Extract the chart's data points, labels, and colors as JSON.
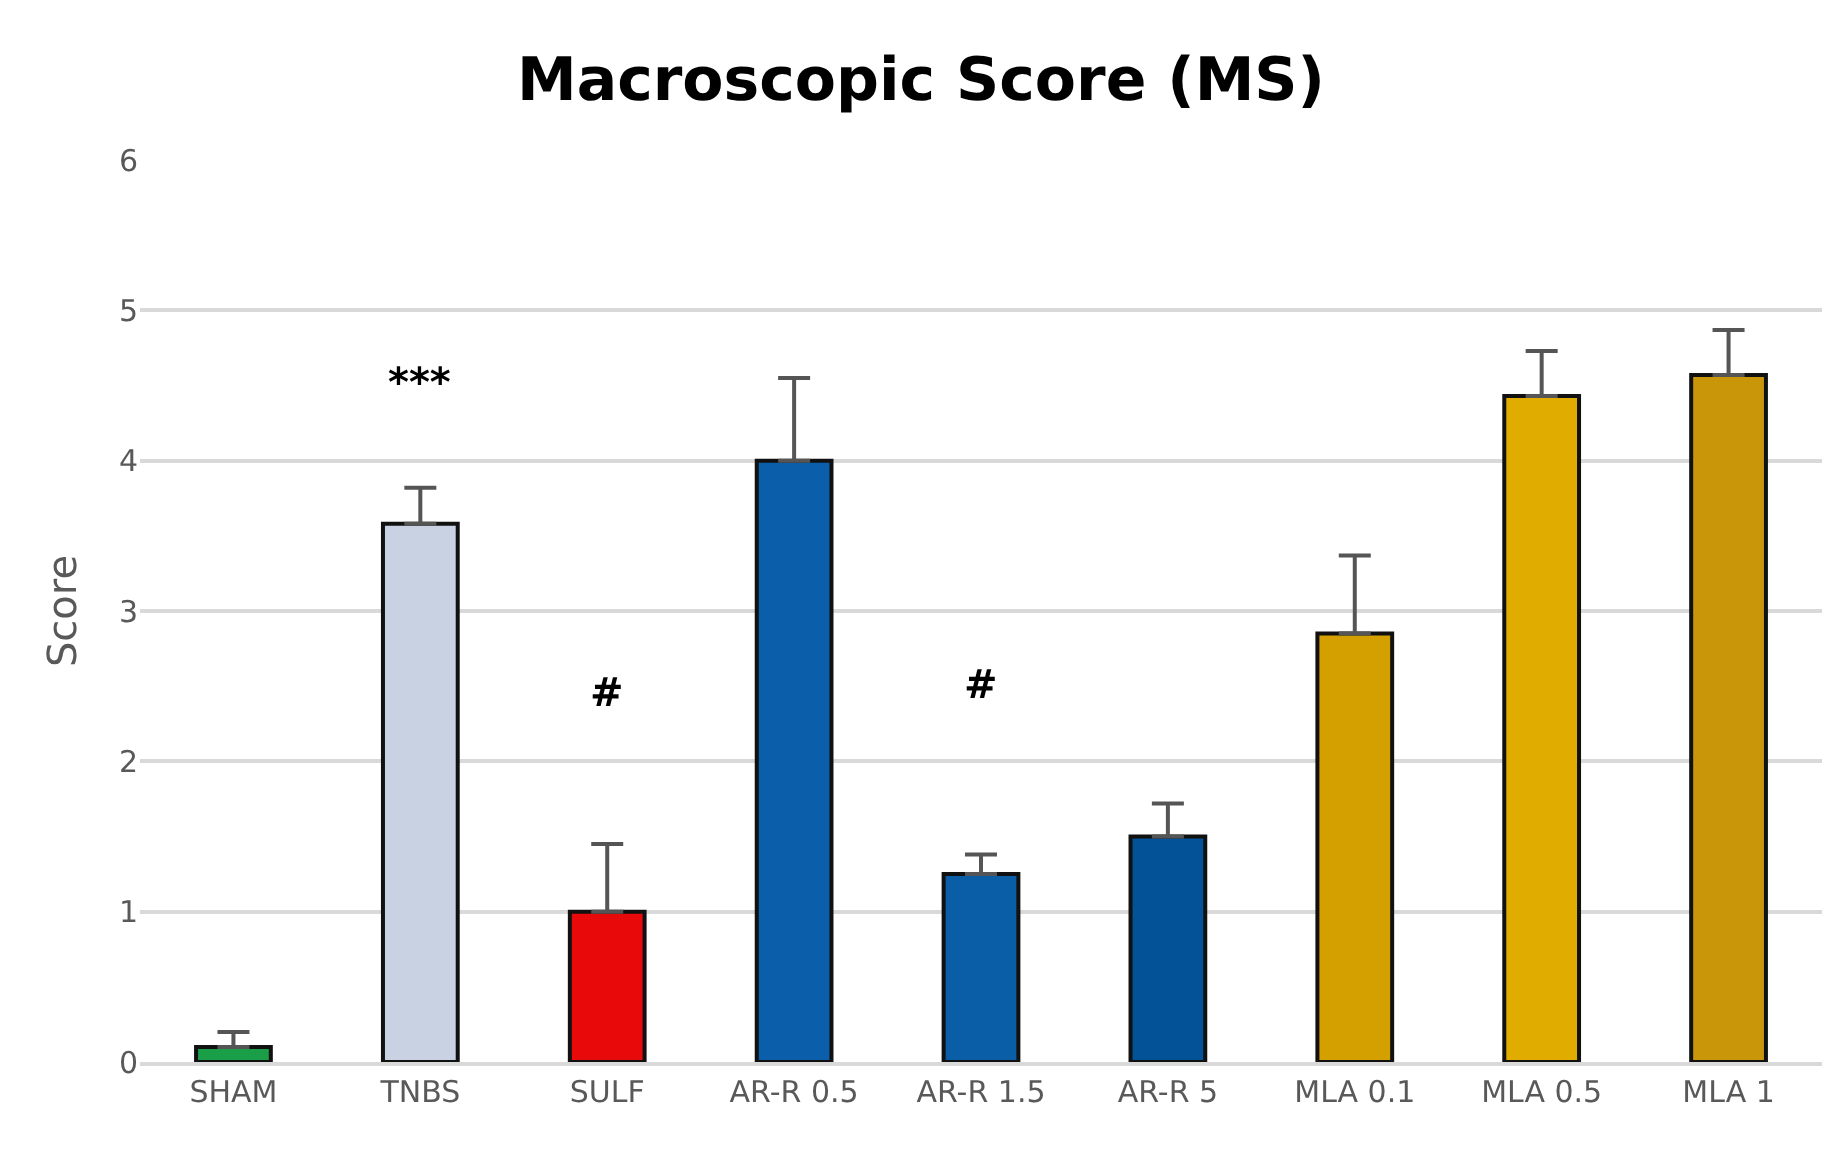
{
  "chart_data": {
    "type": "bar",
    "title": "Macroscopic Score (MS)",
    "ylabel": "Score",
    "categories": [
      "SHAM",
      "TNBS",
      "SULF",
      "AR-R 0.5",
      "AR-R 1.5",
      "AR-R 5",
      "MLA 0.1",
      "MLA 0.5",
      "MLA 1"
    ],
    "values": [
      0.1,
      3.58,
      1.0,
      4.0,
      1.25,
      1.5,
      2.85,
      4.43,
      4.57
    ],
    "errors": [
      [
        0.1,
        0.2
      ],
      [
        3.58,
        3.82
      ],
      [
        1.0,
        1.45
      ],
      [
        4.0,
        4.55
      ],
      [
        1.25,
        1.38
      ],
      [
        1.5,
        1.72
      ],
      [
        2.85,
        3.37
      ],
      [
        4.43,
        4.73
      ],
      [
        4.57,
        4.87
      ]
    ],
    "colors": [
      "#1a9e48",
      "#c9d2e2",
      "#e80a0a",
      "#0a5eaa",
      "#0a5ea8",
      "#035298",
      "#d4a000",
      "#e0ac00",
      "#c89608"
    ],
    "ylim": [
      0,
      6
    ],
    "yticks": [
      0,
      1,
      2,
      3,
      4,
      5,
      6
    ],
    "grid": "y",
    "annotations": [
      "***",
      "#",
      "#"
    ]
  }
}
